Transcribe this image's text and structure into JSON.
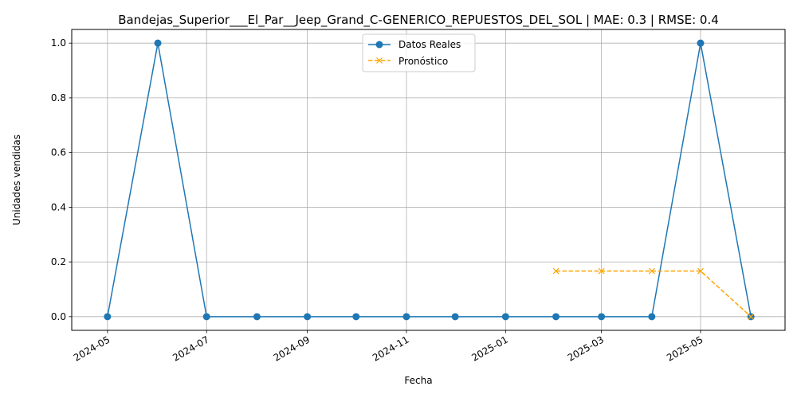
{
  "chart_data": {
    "type": "line",
    "title": "Bandejas_Superior___El_Par__Jeep_Grand_C-GENERICO_REPUESTOS_DEL_SOL | MAE: 0.3 | RMSE: 0.4",
    "xlabel": "Fecha",
    "ylabel": "Unidades vendidas",
    "ylim": [
      -0.05,
      1.05
    ],
    "xlim": [
      "2024-04-09",
      "2025-06-22"
    ],
    "grid": true,
    "legend_position": "top-center",
    "x_ticks": [
      "2024-05-01",
      "2024-07-01",
      "2024-09-01",
      "2024-11-01",
      "2025-01-01",
      "2025-03-01",
      "2025-05-01"
    ],
    "x_tick_labels": [
      "2024-05",
      "2024-07",
      "2024-09",
      "2024-11",
      "2025-01",
      "2025-03",
      "2025-05"
    ],
    "y_ticks": [
      0.0,
      0.2,
      0.4,
      0.6,
      0.8,
      1.0
    ],
    "y_tick_labels": [
      "0.0",
      "0.2",
      "0.4",
      "0.6",
      "0.8",
      "1.0"
    ],
    "series": [
      {
        "name": "Datos Reales",
        "color": "#1f77b4",
        "marker": "circle",
        "line_style": "solid",
        "x": [
          "2024-05-01",
          "2024-06-01",
          "2024-07-01",
          "2024-08-01",
          "2024-09-01",
          "2024-10-01",
          "2024-11-01",
          "2024-12-01",
          "2025-01-01",
          "2025-02-01",
          "2025-03-01",
          "2025-04-01",
          "2025-05-01",
          "2025-06-01"
        ],
        "values": [
          0,
          1,
          0,
          0,
          0,
          0,
          0,
          0,
          0,
          0,
          0,
          0,
          1,
          0
        ]
      },
      {
        "name": "Pronóstico",
        "color": "#ffa500",
        "marker": "x",
        "line_style": "dashed",
        "x": [
          "2025-02-01",
          "2025-03-01",
          "2025-04-01",
          "2025-05-01",
          "2025-06-01"
        ],
        "values": [
          0.1667,
          0.1667,
          0.1667,
          0.1667,
          0
        ]
      }
    ]
  }
}
